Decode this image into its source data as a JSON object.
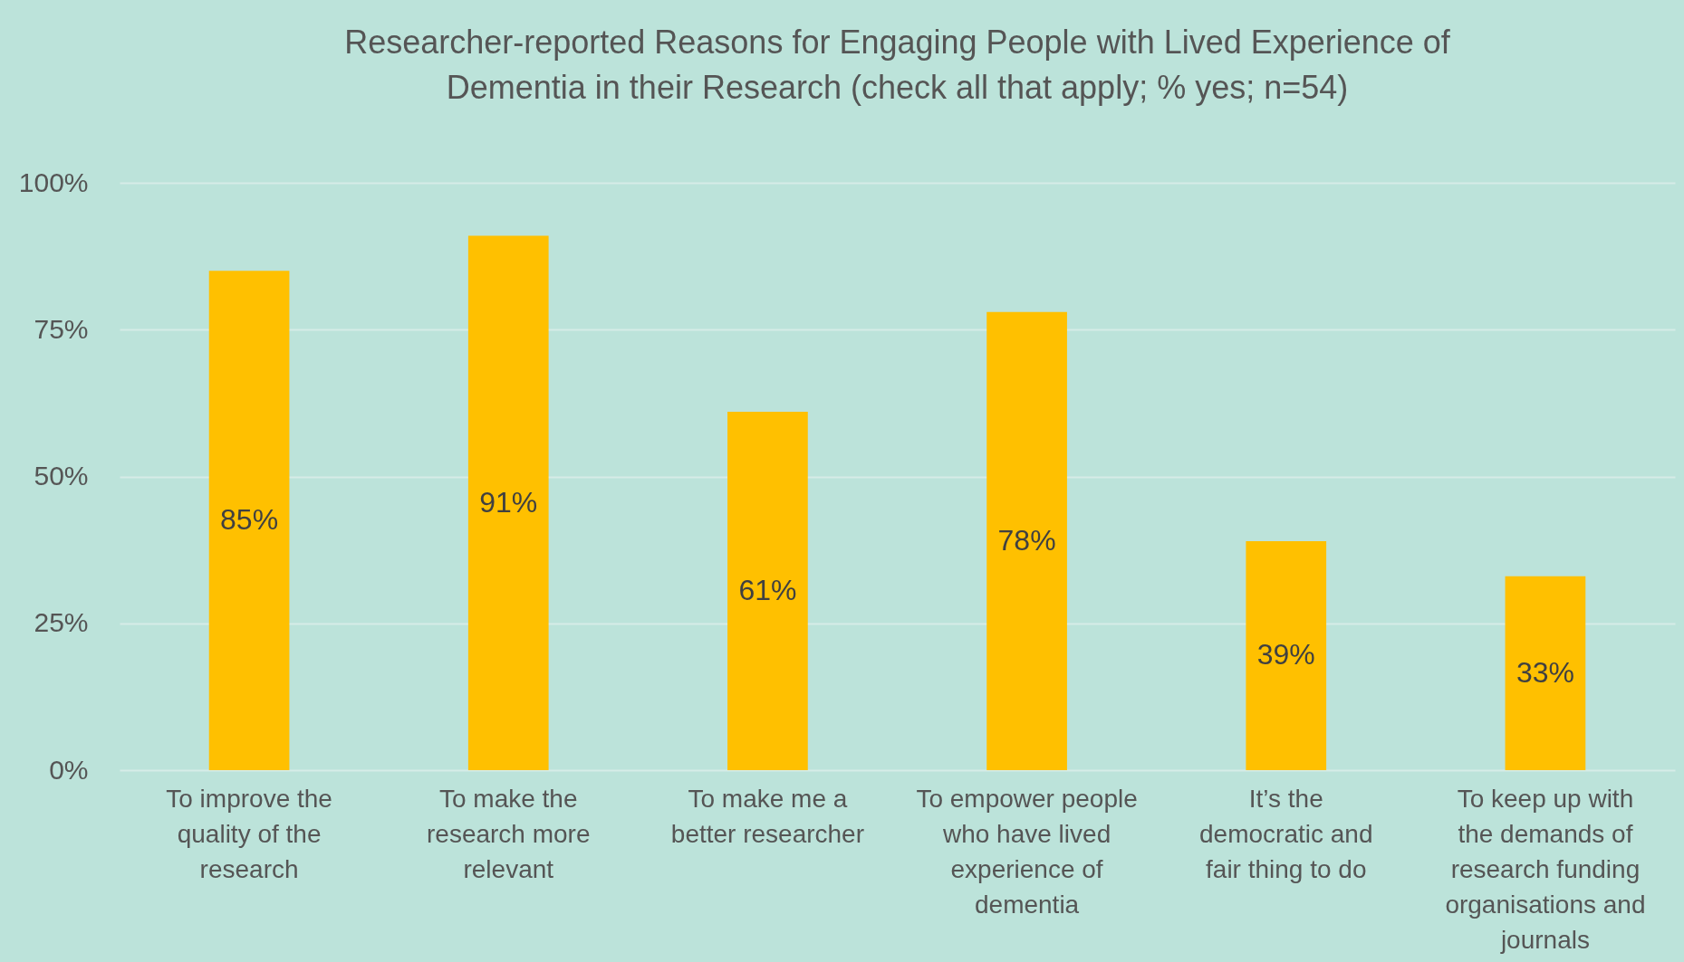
{
  "chart_data": {
    "type": "bar",
    "title": "Researcher-reported Reasons for Engaging People with Lived Experience of Dementia in their Research (check all that apply; % yes; n=54)",
    "categories": [
      "To improve the quality of the research",
      "To make the research more relevant",
      "To make me a better researcher",
      "To empower people who have lived experience of dementia",
      "It’s the democratic and fair thing to do",
      "To keep up with the demands of research funding organisations and journals"
    ],
    "values": [
      85,
      91,
      61,
      78,
      39,
      33
    ],
    "value_labels": [
      "85%",
      "91%",
      "61%",
      "78%",
      "39%",
      "33%"
    ],
    "color": "#ffc000",
    "ylim": [
      0,
      100
    ],
    "yticks": [
      {
        "value": 0,
        "label": "0%"
      },
      {
        "value": 25,
        "label": "25%"
      },
      {
        "value": 50,
        "label": "50%"
      },
      {
        "value": 75,
        "label": "75%"
      },
      {
        "value": 100,
        "label": "100%"
      }
    ],
    "grid": "y"
  }
}
